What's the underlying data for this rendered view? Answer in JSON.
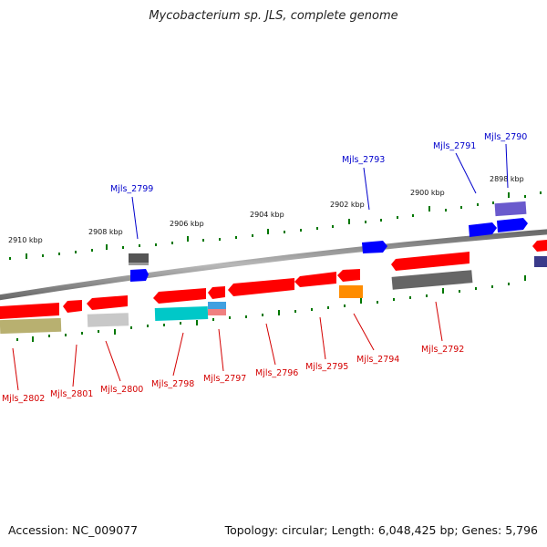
{
  "title": "Mycobacterium sp. JLS, complete genome",
  "footer": {
    "accession": "Accession: NC_009077",
    "summary": "Topology: circular; Length: 6,048,425 bp; Genes: 5,796"
  },
  "scale_labels": [
    "2910 kbp",
    "2908 kbp",
    "2906 kbp",
    "2904 kbp",
    "2902 kbp",
    "2900 kbp",
    "2898 kbp"
  ],
  "gene_labels_top": [
    "Mjls_2799",
    "Mjls_2793",
    "Mjls_2791",
    "Mjls_2790"
  ],
  "gene_labels_bottom": [
    "Mjls_2802",
    "Mjls_2801",
    "Mjls_2800",
    "Mjls_2798",
    "Mjls_2797",
    "Mjls_2796",
    "Mjls_2795",
    "Mjls_2794",
    "Mjls_2792"
  ],
  "colors": {
    "backbone": "#8a8a8a",
    "forward_gene": "#0000ff",
    "reverse_gene": "#ff0000",
    "tick": "#007700",
    "label_reverse": "#d40000",
    "label_forward": "#0000cc"
  }
}
